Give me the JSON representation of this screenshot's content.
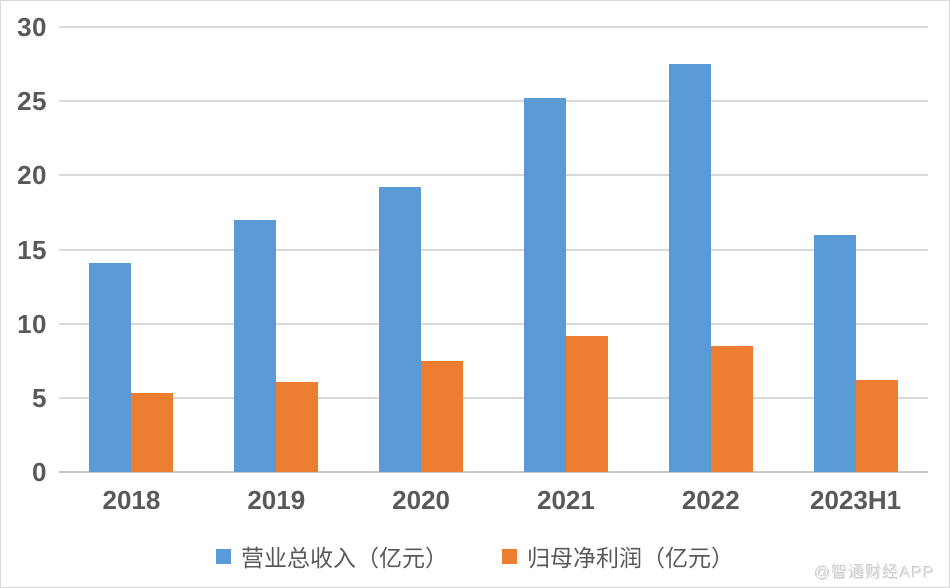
{
  "chart_data": {
    "type": "bar",
    "categories": [
      "2018",
      "2019",
      "2020",
      "2021",
      "2022",
      "2023H1"
    ],
    "series": [
      {
        "key": "revenue",
        "name": "营业总收入（亿元）",
        "color": "#5B9BD5",
        "values": [
          14.1,
          17.0,
          19.2,
          25.2,
          27.5,
          16.0
        ]
      },
      {
        "key": "net-profit",
        "name": "归母净利润（亿元）",
        "color": "#ED7D31",
        "values": [
          5.3,
          6.1,
          7.5,
          9.2,
          8.5,
          6.2
        ]
      }
    ],
    "title": "",
    "xlabel": "",
    "ylabel": "",
    "ylim": [
      0,
      30
    ],
    "yticks": [
      0,
      5,
      10,
      15,
      20,
      25,
      30
    ],
    "grid": true,
    "grid_color": "#D9D9D9",
    "axis_label_color": "#595959",
    "legend_position": "bottom"
  },
  "watermark": "@智通财经APP"
}
